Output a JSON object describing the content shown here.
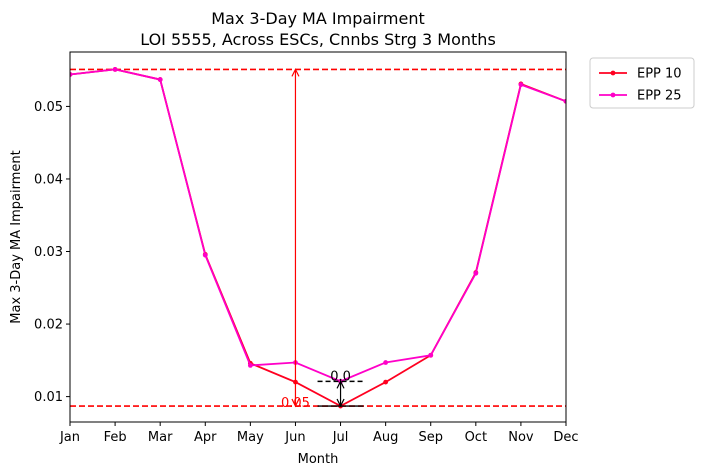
{
  "chart_data": {
    "type": "line",
    "title": "Max 3-Day MA Impairment",
    "subtitle": "LOI 5555, Across ESCs, Cnnbs Strg 3 Months",
    "xlabel": "Month",
    "ylabel": "Max 3-Day MA Impairment",
    "categories": [
      "Jan",
      "Feb",
      "Mar",
      "Apr",
      "May",
      "Jun",
      "Jul",
      "Aug",
      "Sep",
      "Oct",
      "Nov",
      "Dec"
    ],
    "yticks": [
      "0.01",
      "0.02",
      "0.03",
      "0.04",
      "0.05"
    ],
    "ylim": [
      0.0065,
      0.0575
    ],
    "grid": false,
    "legend_position": "outside-top-right",
    "series": [
      {
        "name": "EPP 10",
        "color": "#ff0020",
        "values": [
          0.0544,
          0.0551,
          0.0537,
          0.0296,
          0.0146,
          0.012,
          0.0087,
          0.012,
          0.0157,
          0.0271,
          0.0531,
          0.0507
        ]
      },
      {
        "name": "EPP 25",
        "color": "#ff00c8",
        "values": [
          0.0544,
          0.0551,
          0.0537,
          0.0295,
          0.0143,
          0.0147,
          0.0121,
          0.0147,
          0.0157,
          0.027,
          0.053,
          0.0507
        ]
      }
    ],
    "reference_lines": [
      {
        "y": 0.0551,
        "color": "#ff0000"
      },
      {
        "y": 0.0087,
        "color": "#ff0000"
      }
    ],
    "annotations": [
      {
        "text": "0.05",
        "color": "#ff0000",
        "x_index": 5,
        "from": 0.0087,
        "to": 0.0551
      },
      {
        "text": "0.0",
        "color": "#000000",
        "x_index": 6,
        "from": 0.0087,
        "to": 0.0121
      }
    ]
  }
}
